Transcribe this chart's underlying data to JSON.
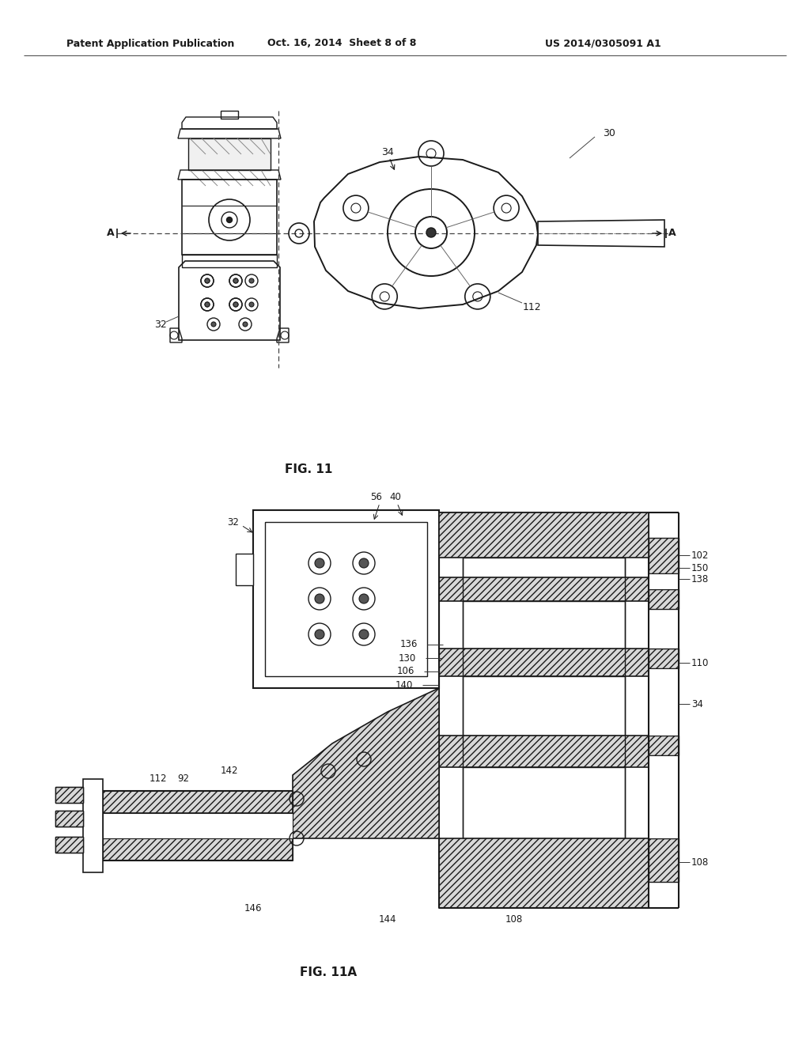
{
  "bg_color": "#ffffff",
  "fig_width": 10.24,
  "fig_height": 13.2,
  "header_text": "Patent Application Publication",
  "header_date": "Oct. 16, 2014  Sheet 8 of 8",
  "header_patent": "US 2014/0305091 A1",
  "fig11_label": "FIG. 11",
  "fig11a_label": "FIG. 11A",
  "line_color": "#1a1a1a",
  "hatch_color": "#333333",
  "label_color": "#333333"
}
